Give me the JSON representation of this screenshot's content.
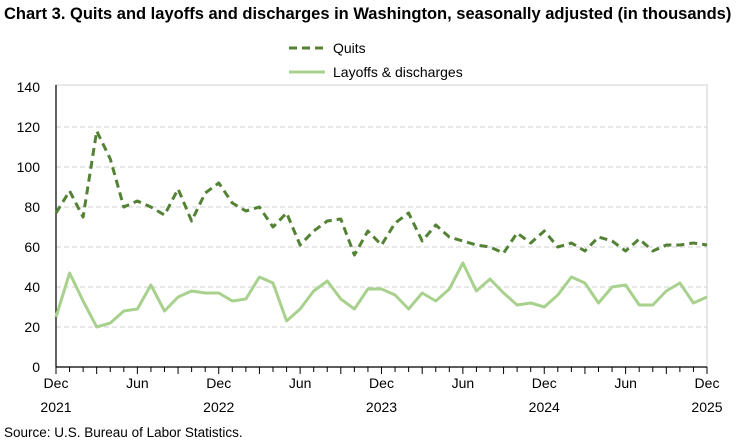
{
  "chart_data": {
    "type": "line",
    "title": "Chart 3. Quits and layoffs and discharges in Washington, seasonally adjusted (in thousands)",
    "xlabel": "",
    "ylabel": "",
    "x_start": "Dec 2021",
    "x_end": "Dec 2025",
    "x_frequency": "monthly",
    "ylim": [
      0,
      140
    ],
    "yticks": [
      "0",
      "20",
      "40",
      "60",
      "80",
      "100",
      "120",
      "140"
    ],
    "xtick_labels": [
      {
        "month": "Dec",
        "year": "2021",
        "index": 0
      },
      {
        "month": "Jun",
        "year": "",
        "index": 6
      },
      {
        "month": "Dec",
        "year": "2022",
        "index": 12
      },
      {
        "month": "Jun",
        "year": "",
        "index": 18
      },
      {
        "month": "Dec",
        "year": "2023",
        "index": 24
      },
      {
        "month": "Jun",
        "year": "",
        "index": 30
      },
      {
        "month": "Dec",
        "year": "2024",
        "index": 36
      },
      {
        "month": "Jun",
        "year": "",
        "index": 42
      },
      {
        "month": "Dec",
        "year": "2025",
        "index": 48
      }
    ],
    "grid": true,
    "legend_position": "top-center",
    "series": [
      {
        "name": "Quits",
        "color": "#548235",
        "style": "dashed",
        "values": [
          77,
          88,
          75,
          118,
          104,
          80,
          83,
          80,
          76,
          89,
          73,
          87,
          92,
          82,
          78,
          80,
          70,
          77,
          61,
          68,
          73,
          74,
          56,
          68,
          61,
          72,
          77,
          63,
          71,
          65,
          63,
          61,
          60,
          57,
          67,
          62,
          68,
          60,
          62,
          58,
          65,
          63,
          58,
          64,
          58,
          61,
          61,
          62,
          61
        ]
      },
      {
        "name": "Layoffs & discharges",
        "color": "#a9d18e",
        "style": "solid",
        "values": [
          25,
          47,
          33,
          20,
          22,
          28,
          29,
          41,
          28,
          35,
          38,
          37,
          37,
          33,
          34,
          45,
          42,
          23,
          29,
          38,
          43,
          34,
          29,
          39,
          39,
          36,
          29,
          37,
          33,
          39,
          52,
          38,
          44,
          37,
          31,
          32,
          30,
          36,
          45,
          42,
          32,
          40,
          41,
          31,
          31,
          38,
          42,
          32,
          35
        ]
      }
    ]
  },
  "source": "Source: U.S. Bureau of Labor Statistics."
}
